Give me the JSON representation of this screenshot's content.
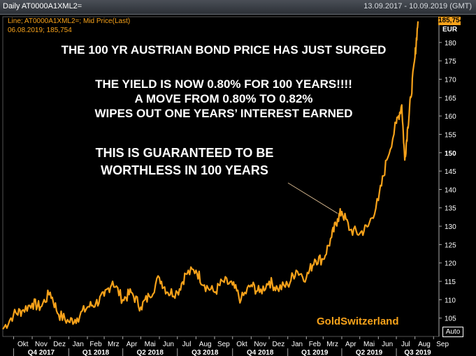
{
  "header": {
    "ticker_label": "Daily AT0000A1XML2=",
    "date_range": "13.09.2017 - 10.09.2019 (GMT)"
  },
  "legend": {
    "line_label": "Line; AT0000A1XML2=; Mid Price(Last)",
    "last_point": "06.08.2019; 185,754"
  },
  "annotations": {
    "headline": "THE 100 YR AUSTRIAN BOND PRICE HAS  JUST SURGED",
    "yield_line1": "THE YIELD IS NOW 0.80% FOR 100 YEARS!!!!",
    "yield_line2": "A MOVE FROM 0.80% TO 0.82%",
    "yield_line3": "WIPES OUT ONE YEARS’ INTEREST EARNED",
    "box_line1": "THIS IS GUARANTEED TO BE",
    "box_line2": "WORTHLESS IN 100 YEARS"
  },
  "brand": "GoldSwitzerland",
  "axis": {
    "last_value_badge": "185,754",
    "currency": "EUR",
    "auto_button": "Auto"
  },
  "colors": {
    "line": "#f7a21a",
    "background": "#000000",
    "grid": "#3a3a3a"
  },
  "chart_data": {
    "type": "line",
    "series": [
      {
        "name": "AT0000A1XML2=",
        "x": [
          "2017-09-13",
          "2017-10-01",
          "2017-10-15",
          "2017-11-01",
          "2017-11-15",
          "2017-12-01",
          "2017-12-15",
          "2018-01-01",
          "2018-01-15",
          "2018-02-01",
          "2018-02-15",
          "2018-03-01",
          "2018-03-15",
          "2018-04-01",
          "2018-04-15",
          "2018-05-01",
          "2018-05-15",
          "2018-06-01",
          "2018-06-15",
          "2018-07-01",
          "2018-07-15",
          "2018-08-01",
          "2018-08-15",
          "2018-09-01",
          "2018-09-15",
          "2018-10-01",
          "2018-10-15",
          "2018-11-01",
          "2018-11-15",
          "2018-12-01",
          "2018-12-15",
          "2019-01-01",
          "2019-01-15",
          "2019-02-01",
          "2019-02-15",
          "2019-03-01",
          "2019-03-15",
          "2019-03-25",
          "2019-04-01",
          "2019-04-15",
          "2019-05-01",
          "2019-05-15",
          "2019-06-01",
          "2019-06-15",
          "2019-07-01",
          "2019-07-10",
          "2019-07-15",
          "2019-07-20",
          "2019-07-25",
          "2019-08-01",
          "2019-08-06"
        ],
        "values": [
          102,
          106,
          107,
          109,
          108,
          112,
          106,
          104,
          105,
          108,
          109,
          111,
          115,
          110,
          112,
          108,
          111,
          116,
          112,
          112,
          117,
          118,
          114,
          112,
          115,
          114,
          110,
          114,
          112,
          115,
          113,
          114,
          118,
          116,
          121,
          121,
          127,
          132,
          134,
          129,
          128,
          130,
          137,
          148,
          158,
          163,
          148,
          157,
          165,
          176,
          185.754
        ]
      }
    ],
    "x_ticks_months": [
      "Okt",
      "Nov",
      "Dez",
      "Jan",
      "Feb",
      "Mrz",
      "Apr",
      "Mai",
      "Jun",
      "Jul",
      "Aug",
      "Sep",
      "Okt",
      "Nov",
      "Dez",
      "Jan",
      "Feb",
      "Mrz",
      "Apr",
      "Mai",
      "Jun",
      "Jul",
      "Aug",
      "Sep"
    ],
    "x_ticks_quarters": [
      "Q4 2017",
      "Q1 2018",
      "Q2 2018",
      "Q3 2018",
      "Q4 2018",
      "Q1 2019",
      "Q2 2019",
      "Q3 2019"
    ],
    "y_ticks": [
      105,
      110,
      115,
      120,
      125,
      130,
      135,
      140,
      145,
      150,
      155,
      160,
      165,
      170,
      175,
      180
    ],
    "ylim": [
      100,
      187
    ],
    "grid": false,
    "axis_position": "right"
  }
}
